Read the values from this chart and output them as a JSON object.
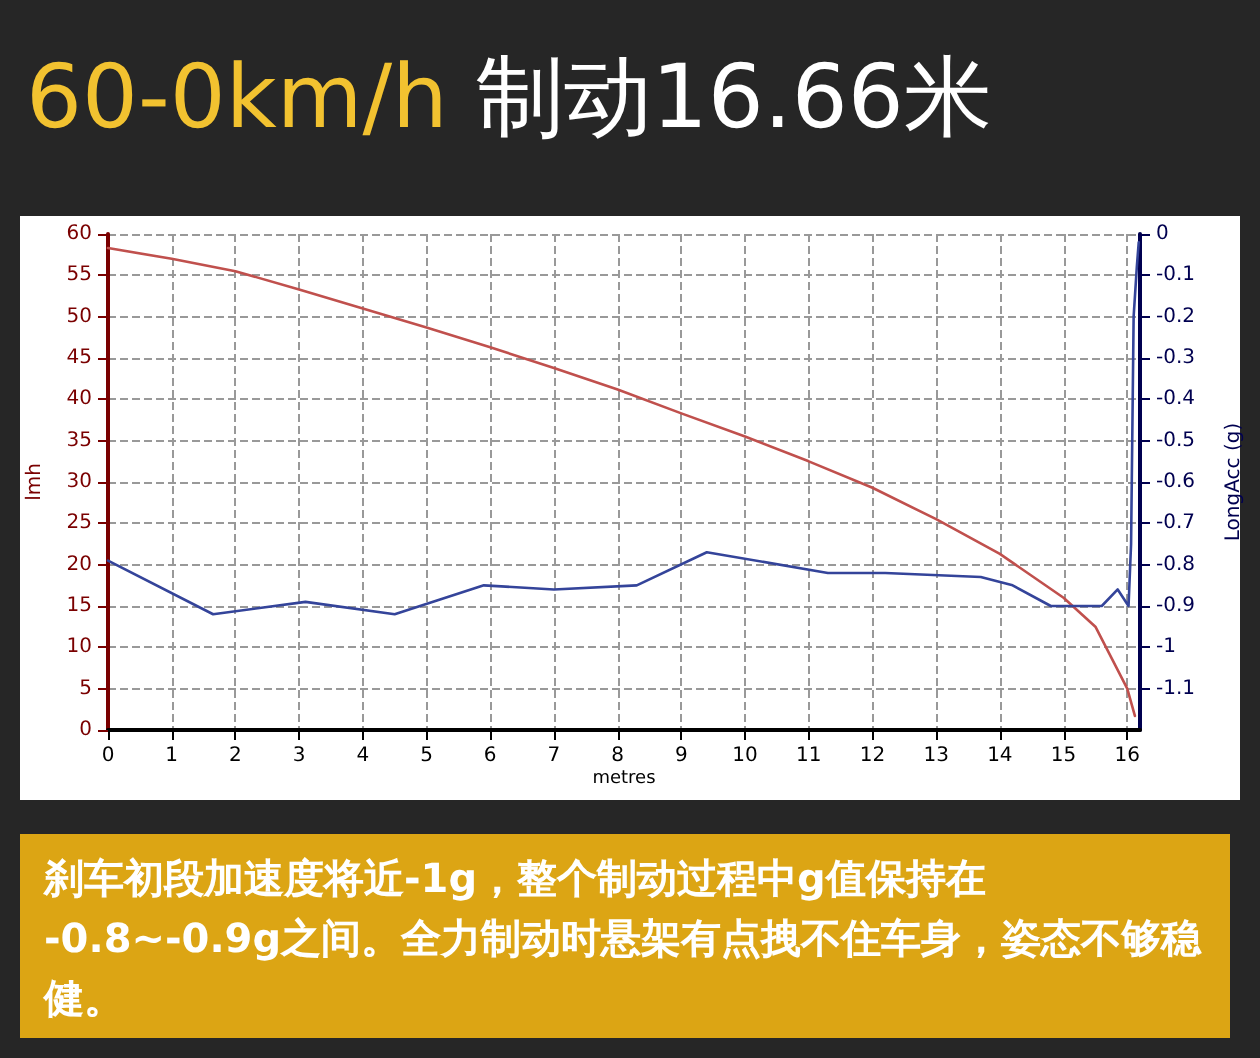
{
  "chart_data": {
    "type": "line",
    "title": "60-0km/h 制动16.66米",
    "xlabel": "metres",
    "ylabel": "lmh",
    "y2label": "LongAcc (g)",
    "annotations": [
      "刹车初段加速度将近-1g，整个制动过程中g值保持在-0.8~-0.9g之间。全力制动时悬架有点拽不住车身，姿态不够稳健。"
    ],
    "series": [
      {
        "color": "#c0504d",
        "x": [
          0,
          1,
          2,
          3,
          4,
          5,
          6,
          7,
          8,
          9,
          10,
          11,
          12,
          13,
          14,
          15,
          15.5,
          16,
          16.12
        ],
        "values": [
          58.3,
          57,
          55.5,
          53.3,
          51,
          48.7,
          46.3,
          43.8,
          41.2,
          38.3,
          35.5,
          32.5,
          29.3,
          25.5,
          21.3,
          16,
          12.5,
          5,
          1.7
        ]
      },
      {
        "color": "#34449a",
        "axis": "y2",
        "x": [
          0,
          1.65,
          3.1,
          4.5,
          5.9,
          7,
          8.3,
          9.4,
          11.3,
          12.2,
          13.7,
          14.2,
          14.8,
          15.6,
          15.85,
          16.02,
          16.06,
          16.1,
          16.15,
          16.18
        ],
        "values": [
          -0.79,
          -0.92,
          -0.89,
          -0.92,
          -0.85,
          -0.86,
          -0.85,
          -0.77,
          -0.82,
          -0.82,
          -0.83,
          -0.85,
          -0.9,
          -0.9,
          -0.86,
          -0.9,
          -0.75,
          -0.2,
          -0.08,
          -0.02
        ]
      }
    ],
    "xlim": [
      0,
      16.2
    ],
    "xticks": [
      0,
      1,
      2,
      3,
      4,
      5,
      6,
      7,
      8,
      9,
      10,
      11,
      12,
      13,
      14,
      15,
      16
    ],
    "ylim": [
      0,
      60
    ],
    "yticks": [
      0,
      5,
      10,
      15,
      20,
      25,
      30,
      35,
      40,
      45,
      50,
      55,
      60
    ],
    "y2lim": [
      -1.2,
      0
    ],
    "y2ticks": [
      0,
      -0.1,
      -0.2,
      -0.3,
      -0.4,
      -0.5,
      -0.6,
      -0.7,
      -0.8,
      -0.9,
      -1,
      -1.1
    ],
    "grid": true,
    "marker": "none",
    "line_style": "solid"
  }
}
